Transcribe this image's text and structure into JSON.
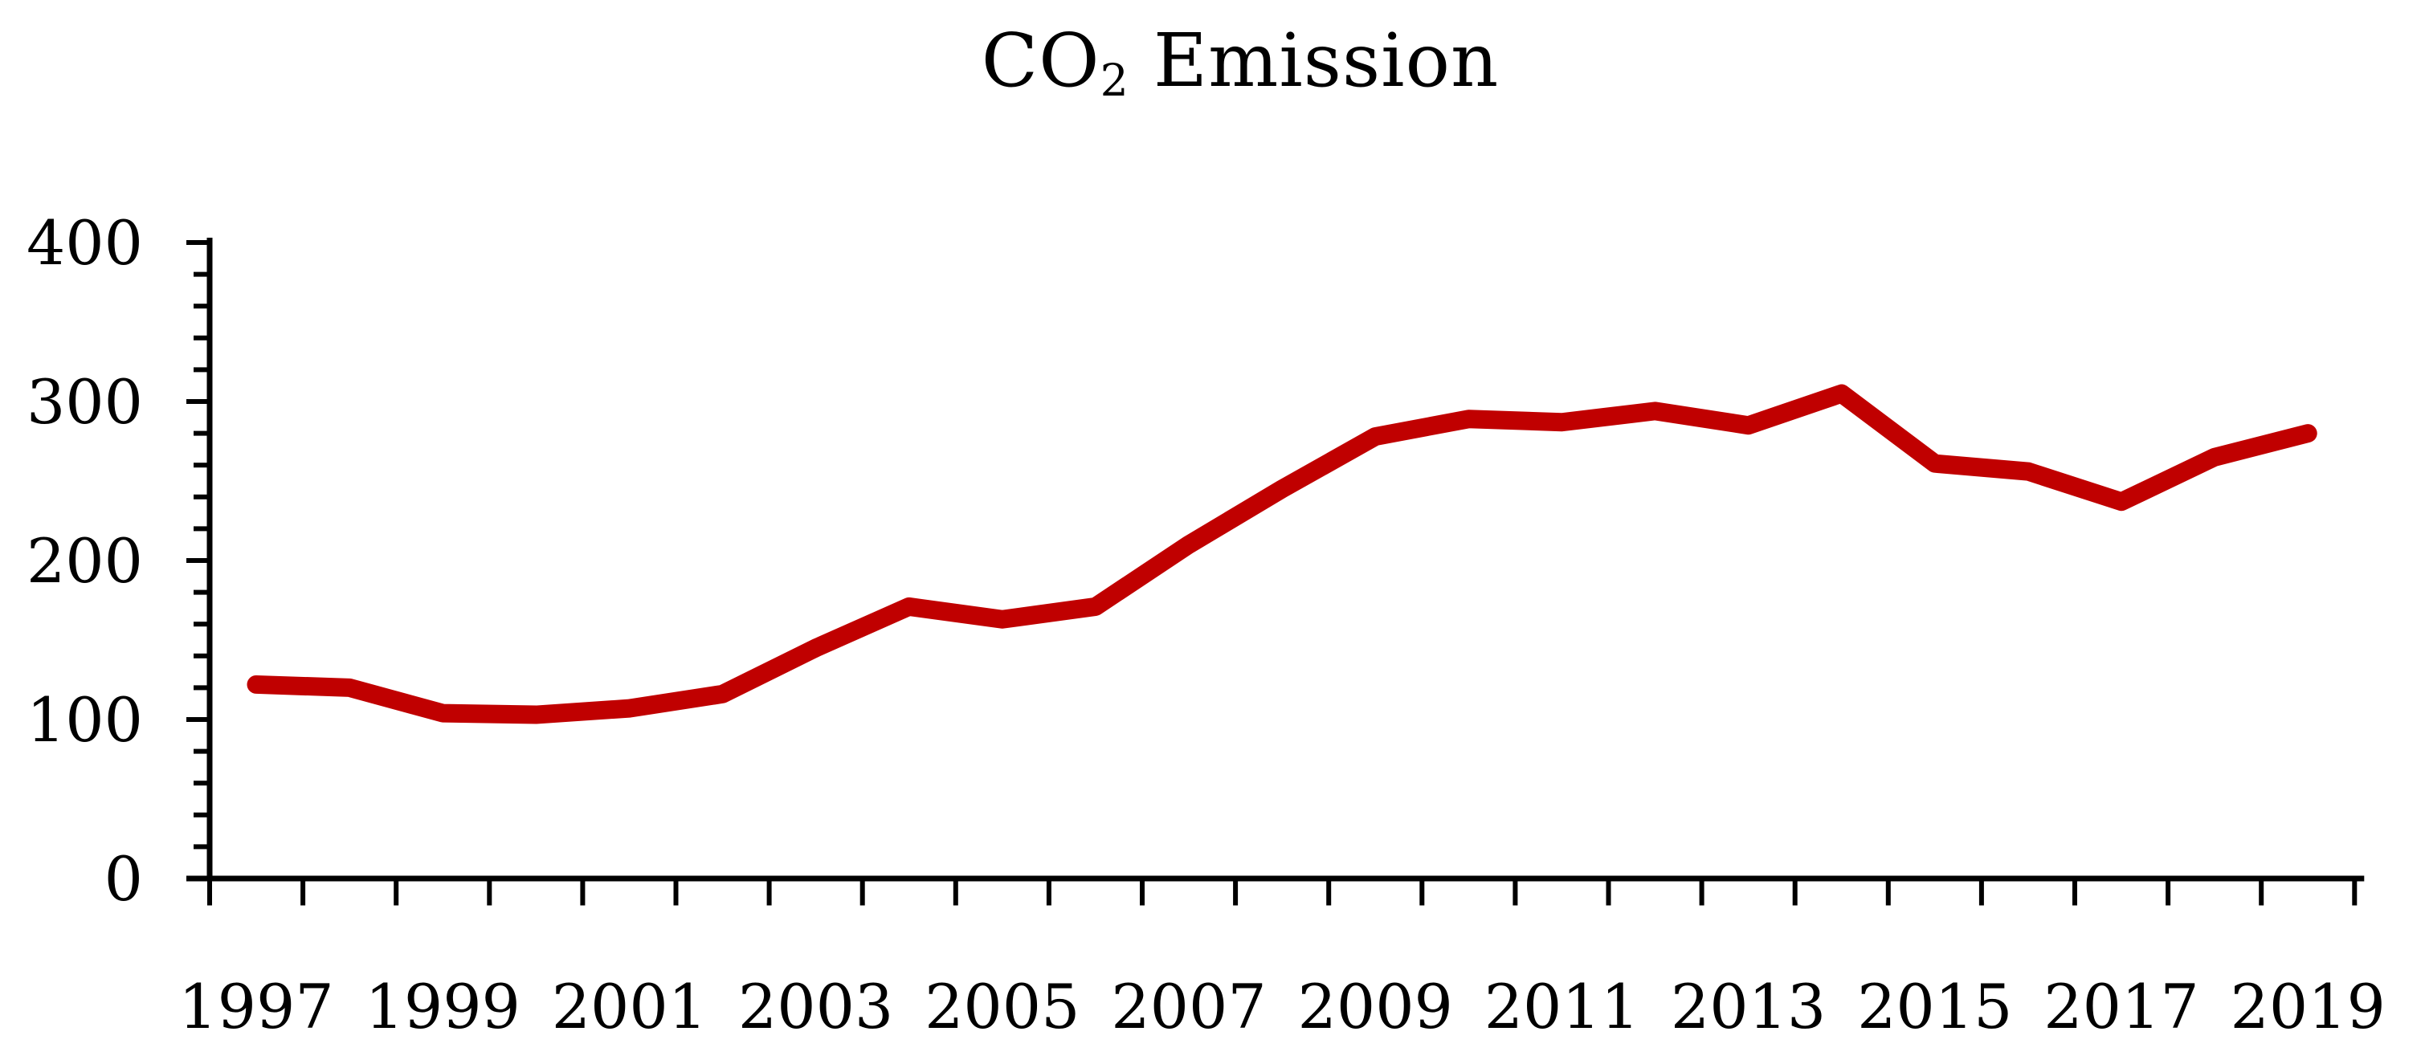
{
  "chart_data": {
    "type": "line",
    "title": {
      "prefix": "CO",
      "subscript": "2",
      "suffix": " Emission"
    },
    "xlabel": "",
    "ylabel": "",
    "x": [
      1997,
      1998,
      1999,
      2000,
      2001,
      2002,
      2003,
      2004,
      2005,
      2006,
      2007,
      2008,
      2009,
      2010,
      2011,
      2012,
      2013,
      2014,
      2015,
      2016,
      2017,
      2018,
      2019
    ],
    "series": [
      {
        "name": "CO2 Emission",
        "color": "#C00000",
        "values": [
          122,
          120,
          104,
          103,
          107,
          116,
          145,
          171,
          163,
          171,
          210,
          245,
          278,
          289,
          287,
          294,
          285,
          305,
          261,
          256,
          237,
          265,
          280
        ]
      }
    ],
    "ylim": [
      0,
      400
    ],
    "y_major_ticks": [
      0,
      100,
      200,
      300,
      400
    ],
    "y_major_tick_labels": [
      "0",
      "100",
      "200",
      "300",
      "400"
    ],
    "y_minor_tick_step": 20,
    "x_tick_labels": [
      "1997",
      "1999",
      "2001",
      "2003",
      "2005",
      "2007",
      "2009",
      "2011",
      "2013",
      "2015",
      "2017",
      "2019"
    ],
    "x_label_year_step": 2,
    "grid": false,
    "legend_position": "none",
    "axis_color": "#000000",
    "background_color": "#FFFFFF"
  }
}
